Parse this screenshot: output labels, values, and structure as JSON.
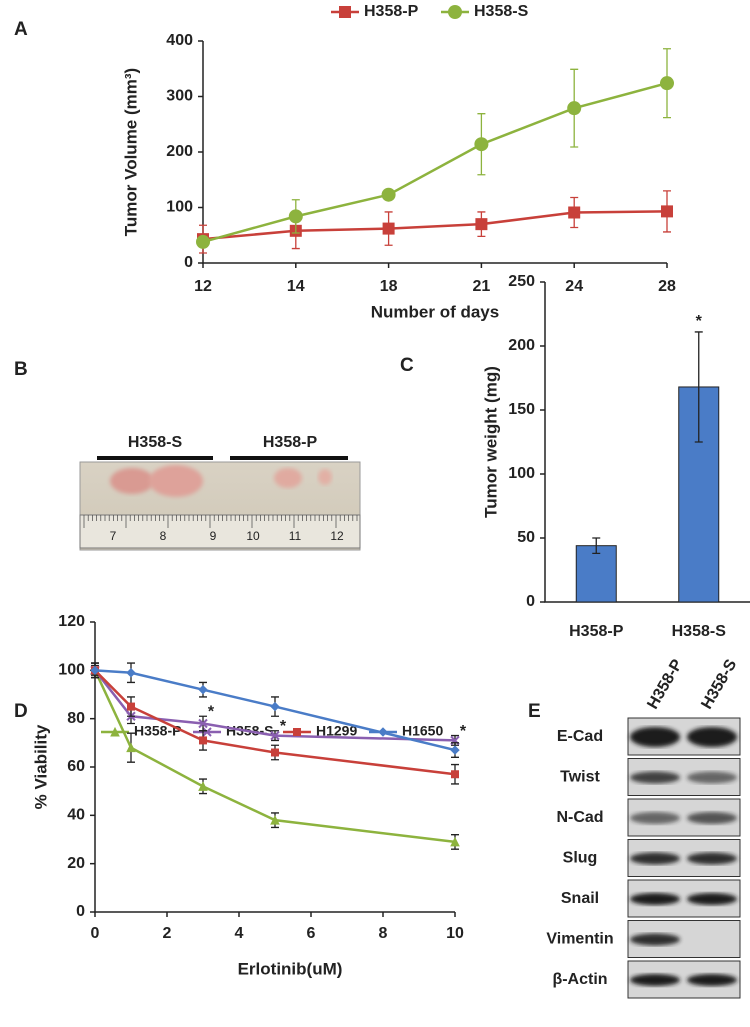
{
  "chart_data": [
    {
      "type": "line",
      "panel": "A",
      "x_label": "Number of days",
      "y_label": "Tumor Volume (mm³)",
      "categories": [
        "12",
        "14",
        "18",
        "21",
        "24",
        "28"
      ],
      "series": [
        {
          "name": "H358-P",
          "color": "#c8403a",
          "marker": "square",
          "values": [
            43,
            58,
            62,
            70,
            91,
            93
          ],
          "errors": [
            25,
            32,
            30,
            22,
            27,
            37
          ]
        },
        {
          "name": "H358-S",
          "color": "#8db33e",
          "marker": "circle",
          "values": [
            38,
            84,
            123,
            214,
            279,
            324
          ],
          "errors": [
            5,
            30,
            8,
            55,
            70,
            62
          ]
        }
      ],
      "ylim": [
        0,
        400
      ],
      "yticks": [
        0,
        100,
        200,
        300,
        400
      ],
      "legend": "top"
    },
    {
      "type": "bar",
      "panel": "C",
      "y_label": "Tumor weight (mg)",
      "categories": [
        "H358-P",
        "H358-S"
      ],
      "values": [
        44,
        168
      ],
      "errors": [
        6,
        43
      ],
      "significance": [
        null,
        "*"
      ],
      "color": "#4a7cc7",
      "ylim": [
        0,
        250
      ],
      "yticks": [
        0,
        50,
        100,
        150,
        200,
        250
      ]
    },
    {
      "type": "line",
      "panel": "D",
      "x_label": "Erlotinib(uM)",
      "y_label": "% Viability",
      "x": [
        0,
        1,
        3,
        5,
        10
      ],
      "series": [
        {
          "name": "H358-P",
          "color": "#8db33e",
          "marker": "triangle",
          "values": [
            100,
            68,
            52,
            38,
            29
          ],
          "errors": [
            3,
            6,
            3,
            3,
            3
          ]
        },
        {
          "name": "H358-S",
          "color": "#8a5fb0",
          "marker": "x",
          "values": [
            100,
            81,
            78,
            73,
            71
          ],
          "errors": [
            2,
            3,
            3,
            2,
            2
          ],
          "significance": [
            null,
            null,
            "*",
            "*",
            "*"
          ]
        },
        {
          "name": "H1299",
          "color": "#c8403a",
          "marker": "square",
          "values": [
            100,
            85,
            71,
            66,
            57
          ],
          "errors": [
            3,
            4,
            4,
            3,
            4
          ]
        },
        {
          "name": "H1650",
          "color": "#4a7cc7",
          "marker": "diamond",
          "values": [
            100,
            99,
            92,
            85,
            67
          ],
          "errors": [
            3,
            4,
            3,
            4,
            3
          ]
        }
      ],
      "xlim": [
        0,
        10
      ],
      "xticks": [
        0,
        2,
        4,
        6,
        8,
        10
      ],
      "ylim": [
        0,
        120
      ],
      "yticks": [
        0,
        20,
        40,
        60,
        80,
        100,
        120
      ],
      "legend": "top"
    }
  ],
  "photo": {
    "panel": "B",
    "groups": [
      "H358-S",
      "H358-P"
    ],
    "ruler": [
      "7",
      "8",
      "9",
      "10",
      "11",
      "12"
    ]
  },
  "blot": {
    "panel": "E",
    "lanes": [
      "H358-P",
      "H358-S"
    ],
    "proteins": [
      "E-Cad",
      "Twist",
      "N-Cad",
      "Slug",
      "Snail",
      "Vimentin",
      "β-Actin"
    ]
  }
}
